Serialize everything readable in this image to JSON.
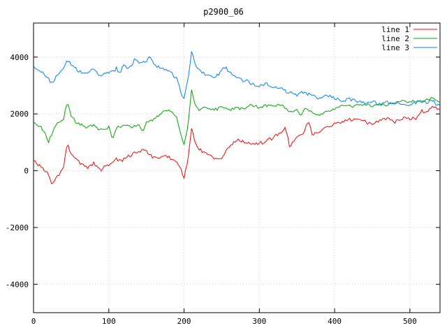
{
  "chart_data": {
    "type": "line",
    "title": "p2900_06",
    "xlabel": "",
    "ylabel": "",
    "xlim": [
      0,
      540
    ],
    "ylim": [
      -5000,
      5200
    ],
    "xticks": [
      0,
      100,
      200,
      300,
      400,
      500
    ],
    "yticks": [
      -4000,
      -2000,
      0,
      2000,
      4000
    ],
    "grid": true,
    "legend_position": "top-right",
    "background": "#ffffff",
    "border_color": "#000000",
    "grid_color": "#d0d0d0",
    "series": [
      {
        "name": "line 1",
        "color": "#ff0000",
        "noise": 120,
        "x": [
          0,
          5,
          10,
          15,
          20,
          25,
          30,
          35,
          40,
          45,
          50,
          55,
          60,
          70,
          80,
          90,
          100,
          110,
          120,
          130,
          140,
          150,
          155,
          160,
          170,
          180,
          190,
          195,
          200,
          205,
          210,
          215,
          220,
          230,
          240,
          250,
          260,
          270,
          280,
          290,
          300,
          310,
          320,
          330,
          335,
          340,
          350,
          360,
          365,
          370,
          380,
          390,
          400,
          410,
          420,
          430,
          440,
          450,
          460,
          470,
          480,
          490,
          500,
          510,
          515,
          520,
          530,
          540
        ],
        "y": [
          300,
          250,
          150,
          0,
          -150,
          -500,
          -300,
          -100,
          200,
          950,
          600,
          450,
          350,
          150,
          300,
          100,
          250,
          400,
          350,
          550,
          650,
          700,
          500,
          400,
          500,
          450,
          350,
          100,
          -200,
          300,
          1500,
          1000,
          800,
          600,
          450,
          500,
          900,
          1100,
          1000,
          950,
          1000,
          1100,
          1200,
          1350,
          1500,
          900,
          1200,
          1400,
          1750,
          1300,
          1400,
          1500,
          1600,
          1700,
          1750,
          1800,
          1700,
          1600,
          1700,
          1800,
          1750,
          1900,
          1850,
          1900,
          2100,
          2000,
          2200,
          2100
        ]
      },
      {
        "name": "line 2",
        "color": "#00a400",
        "noise": 100,
        "x": [
          0,
          5,
          10,
          15,
          20,
          25,
          30,
          35,
          40,
          45,
          50,
          55,
          60,
          70,
          80,
          90,
          100,
          105,
          110,
          120,
          130,
          140,
          145,
          150,
          160,
          170,
          180,
          190,
          195,
          200,
          205,
          210,
          215,
          220,
          230,
          240,
          250,
          260,
          270,
          280,
          290,
          300,
          310,
          320,
          330,
          340,
          350,
          355,
          360,
          370,
          380,
          390,
          400,
          410,
          420,
          430,
          440,
          450,
          460,
          470,
          480,
          490,
          500,
          510,
          520,
          530,
          540
        ],
        "y": [
          1700,
          1600,
          1500,
          1300,
          1000,
          1300,
          1600,
          1700,
          1800,
          2400,
          1900,
          1700,
          1600,
          1500,
          1600,
          1400,
          1500,
          1100,
          1500,
          1600,
          1500,
          1600,
          1300,
          1700,
          1800,
          2000,
          2100,
          1900,
          1400,
          900,
          1500,
          2800,
          2300,
          2100,
          2200,
          2100,
          2200,
          2100,
          2200,
          2150,
          2300,
          2200,
          2250,
          2200,
          2300,
          2000,
          2100,
          1900,
          2200,
          2100,
          2000,
          2100,
          2200,
          2300,
          2250,
          2300,
          2350,
          2300,
          2400,
          2350,
          2400,
          2450,
          2400,
          2500,
          2450,
          2600,
          2400
        ]
      },
      {
        "name": "line 3",
        "color": "#0080ff",
        "noise": 110,
        "x": [
          0,
          5,
          10,
          15,
          20,
          25,
          30,
          35,
          40,
          45,
          50,
          60,
          70,
          80,
          90,
          100,
          110,
          115,
          120,
          125,
          130,
          135,
          140,
          150,
          155,
          160,
          170,
          180,
          190,
          195,
          200,
          205,
          210,
          215,
          220,
          230,
          240,
          250,
          255,
          260,
          270,
          280,
          290,
          300,
          310,
          315,
          320,
          330,
          340,
          350,
          360,
          370,
          380,
          390,
          400,
          410,
          420,
          430,
          440,
          450,
          460,
          470,
          480,
          490,
          500,
          510,
          520,
          530,
          540
        ],
        "y": [
          3700,
          3600,
          3500,
          3350,
          3200,
          3000,
          3300,
          3450,
          3600,
          3900,
          3700,
          3500,
          3400,
          3500,
          3300,
          3400,
          3600,
          3400,
          3700,
          3500,
          3700,
          3900,
          3700,
          3800,
          4000,
          3700,
          3600,
          3500,
          3200,
          2800,
          2500,
          3200,
          4200,
          3800,
          3600,
          3400,
          3300,
          3500,
          3700,
          3500,
          3300,
          3200,
          3100,
          3000,
          3100,
          2900,
          3000,
          2900,
          2800,
          2700,
          2800,
          2700,
          2600,
          2700,
          2600,
          2500,
          2550,
          2500,
          2450,
          2500,
          2400,
          2450,
          2400,
          2350,
          2400,
          2450,
          2400,
          2500,
          2300
        ]
      }
    ]
  }
}
